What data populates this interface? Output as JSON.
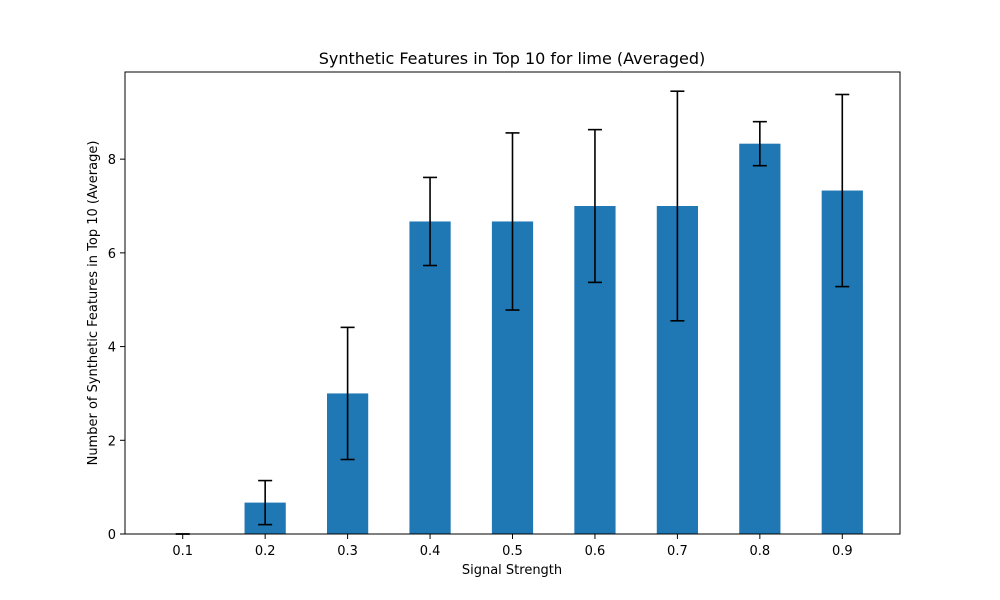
{
  "chart_data": {
    "type": "bar",
    "title": "Synthetic Features in Top 10 for lime  (Averaged)",
    "xlabel": "Signal Strength",
    "ylabel": "Number of Synthetic Features in Top 10 (Average)",
    "categories": [
      "0.1",
      "0.2",
      "0.3",
      "0.4",
      "0.5",
      "0.6",
      "0.7",
      "0.8",
      "0.9"
    ],
    "values": [
      0.0,
      0.67,
      3.0,
      6.67,
      6.67,
      7.0,
      7.0,
      8.33,
      7.33
    ],
    "errors": [
      0.0,
      0.47,
      1.41,
      0.94,
      1.89,
      1.63,
      2.45,
      0.47,
      2.05
    ],
    "yticks": [
      0,
      2,
      4,
      6,
      8
    ],
    "ylim": [
      0,
      9.86
    ],
    "grid": false,
    "colors": {
      "bar": "#1f77b4",
      "error_bar": "#000000",
      "axis": "#000000"
    }
  }
}
